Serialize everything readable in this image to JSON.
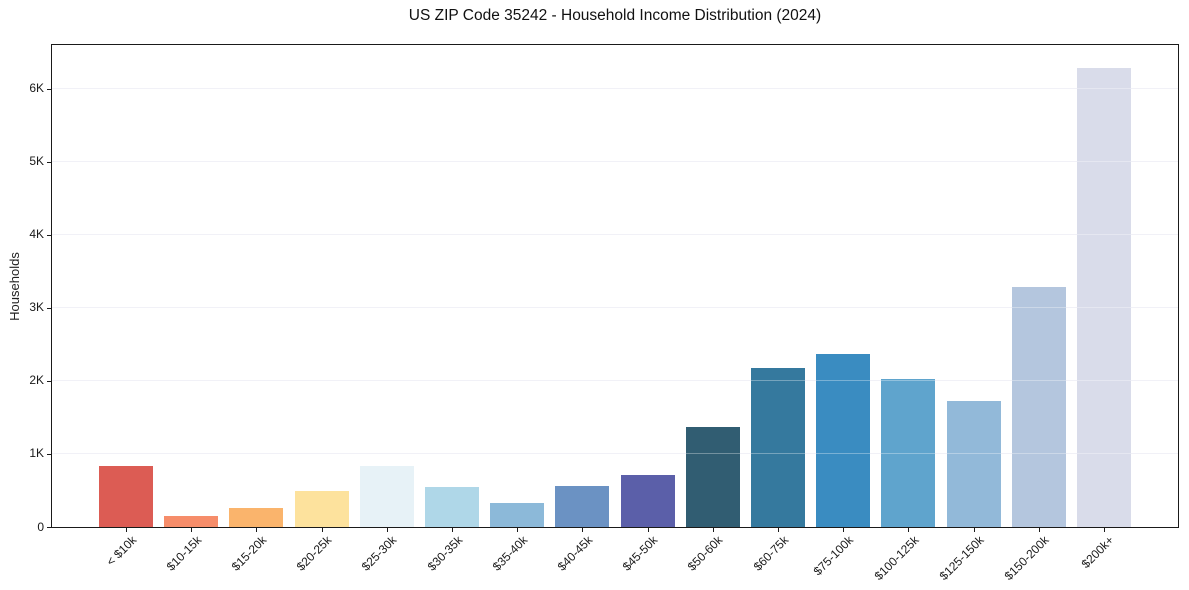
{
  "chart_data": {
    "type": "bar",
    "title": "US ZIP Code 35242 - Household Income Distribution (2024)",
    "xlabel": "",
    "ylabel": "Households",
    "categories": [
      "< $10k",
      "$10-15k",
      "$15-20k",
      "$20-25k",
      "$25-30k",
      "$30-35k",
      "$35-40k",
      "$40-45k",
      "$45-50k",
      "$50-60k",
      "$60-75k",
      "$75-100k",
      "$100-125k",
      "$125-150k",
      "$150-200k",
      "$200k+"
    ],
    "values": [
      840,
      155,
      265,
      495,
      840,
      550,
      335,
      560,
      715,
      1365,
      2175,
      2370,
      2025,
      1725,
      3290,
      6290
    ],
    "bar_colors": [
      "#dc5c54",
      "#f68d6a",
      "#fab46c",
      "#fde29d",
      "#e7f2f7",
      "#afd7e8",
      "#8cb9d9",
      "#6b92c3",
      "#5b5fa9",
      "#315d72",
      "#35799e",
      "#3a8cc1",
      "#5fa4cd",
      "#92b9d9",
      "#b4c6de",
      "#d9dcea"
    ],
    "ylim": [
      0,
      6600
    ],
    "yticks": [
      {
        "value": 0,
        "label": "0"
      },
      {
        "value": 1000,
        "label": "1K"
      },
      {
        "value": 2000,
        "label": "2K"
      },
      {
        "value": 3000,
        "label": "3K"
      },
      {
        "value": 4000,
        "label": "4K"
      },
      {
        "value": 5000,
        "label": "5K"
      },
      {
        "value": 6000,
        "label": "6K"
      }
    ],
    "grid": "horizontal",
    "legend": "none",
    "background_color": "#ffffff",
    "frame_color": "#1a1a1a",
    "grid_color": "#ebebf3"
  }
}
